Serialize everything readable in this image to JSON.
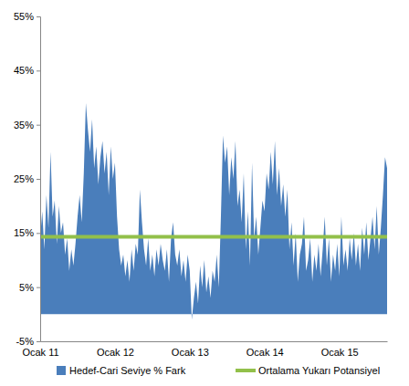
{
  "chart_data": {
    "type": "area",
    "categories": [
      "Ocak 11",
      null,
      null,
      null,
      null,
      null,
      null,
      null,
      null,
      null,
      null,
      null,
      null,
      null,
      null,
      null,
      null,
      null,
      null,
      null,
      null,
      null,
      null,
      null,
      null,
      null,
      null,
      null,
      null,
      null,
      null,
      null,
      null,
      null,
      null,
      null,
      "Ocak 12",
      null,
      null,
      null,
      null,
      null,
      null,
      null,
      null,
      null,
      null,
      null,
      null,
      null,
      null,
      null,
      null,
      null,
      null,
      null,
      null,
      null,
      null,
      null,
      null,
      null,
      null,
      null,
      null,
      null,
      null,
      null,
      null,
      null,
      null,
      null,
      "Ocak 13",
      null,
      null,
      null,
      null,
      null,
      null,
      null,
      null,
      null,
      null,
      null,
      null,
      null,
      null,
      null,
      null,
      null,
      null,
      null,
      null,
      null,
      null,
      null,
      null,
      null,
      null,
      null,
      null,
      null,
      null,
      null,
      null,
      null,
      null,
      null,
      "Ocak 14",
      null,
      null,
      null,
      null,
      null,
      null,
      null,
      null,
      null,
      null,
      null,
      null,
      null,
      null,
      null,
      null,
      null,
      null,
      null,
      null,
      null,
      null,
      null,
      null,
      null,
      null,
      null,
      null,
      null,
      null,
      null,
      null,
      null,
      null,
      null,
      "Ocak 15",
      null,
      null,
      null,
      null,
      null,
      null,
      null,
      null,
      null,
      null,
      null,
      null,
      null,
      null,
      null,
      null,
      null,
      null,
      null,
      null,
      null,
      null,
      null
    ],
    "series": [
      {
        "name": "Hedef-Cari Seviye % Fark",
        "type": "area",
        "color": "#4a7ebb",
        "values": [
          14,
          19,
          12,
          22,
          16,
          30,
          18,
          21,
          13,
          20,
          15,
          17,
          11,
          14,
          8,
          12,
          9,
          13,
          18,
          22,
          17,
          26,
          39,
          34,
          30,
          36,
          27,
          31,
          24,
          29,
          32,
          26,
          30,
          22,
          31,
          25,
          28,
          18,
          12,
          9,
          11,
          7,
          10,
          6,
          12,
          8,
          13,
          11,
          23,
          17,
          12,
          9,
          14,
          8,
          11,
          7,
          12,
          9,
          13,
          10,
          8,
          12,
          6,
          14,
          17,
          11,
          9,
          12,
          7,
          10,
          6,
          11,
          8,
          -1,
          3,
          6,
          2,
          9,
          5,
          10,
          4,
          7,
          3,
          8,
          6,
          11,
          5,
          18,
          33,
          28,
          31,
          22,
          29,
          25,
          32,
          20,
          23,
          17,
          26,
          12,
          19,
          9,
          28,
          14,
          18,
          11,
          16,
          21,
          19,
          26,
          23,
          30,
          24,
          32,
          22,
          27,
          20,
          24,
          18,
          23,
          12,
          17,
          9,
          15,
          6,
          11,
          13,
          18,
          8,
          10,
          14,
          6,
          11,
          8,
          13,
          7,
          12,
          18,
          9,
          14,
          6,
          11,
          8,
          13,
          7,
          18,
          9,
          12,
          8,
          14,
          10,
          15,
          9,
          13,
          8,
          16,
          11,
          17,
          10,
          14,
          18,
          12,
          20,
          11,
          16,
          22,
          29,
          27
        ]
      },
      {
        "name": "Ortalama Yukarı Potansiyel",
        "type": "line",
        "color": "#92c04a",
        "values": [
          14.3,
          14.3,
          14.3,
          14.3,
          14.3,
          14.3,
          14.3,
          14.3,
          14.3,
          14.3,
          14.3,
          14.3,
          14.3,
          14.3,
          14.3,
          14.3,
          14.3,
          14.3,
          14.3,
          14.3,
          14.3,
          14.3,
          14.3,
          14.3,
          14.3,
          14.3,
          14.3,
          14.3,
          14.3,
          14.3,
          14.3,
          14.3,
          14.3,
          14.3,
          14.3,
          14.3,
          14.3,
          14.3,
          14.3,
          14.3,
          14.3,
          14.3,
          14.3,
          14.3,
          14.3,
          14.3,
          14.3,
          14.3,
          14.3,
          14.3,
          14.3,
          14.3,
          14.3,
          14.3,
          14.3,
          14.3,
          14.3,
          14.3,
          14.3,
          14.3,
          14.3,
          14.3,
          14.3,
          14.3,
          14.3,
          14.3,
          14.3,
          14.3,
          14.3,
          14.3,
          14.3,
          14.3,
          14.3,
          14.3,
          14.3,
          14.3,
          14.3,
          14.3,
          14.3,
          14.3,
          14.3,
          14.3,
          14.3,
          14.3,
          14.3,
          14.3,
          14.3,
          14.3,
          14.3,
          14.3,
          14.3,
          14.3,
          14.3,
          14.3,
          14.3,
          14.3,
          14.3,
          14.3,
          14.3,
          14.3,
          14.3,
          14.3,
          14.3,
          14.3,
          14.3,
          14.3,
          14.3,
          14.3,
          14.3,
          14.3,
          14.3,
          14.3,
          14.3,
          14.3,
          14.3,
          14.3,
          14.3,
          14.3,
          14.3,
          14.3,
          14.3,
          14.3,
          14.3,
          14.3,
          14.3,
          14.3,
          14.3,
          14.3,
          14.3,
          14.3,
          14.3,
          14.3,
          14.3,
          14.3,
          14.3,
          14.3,
          14.3,
          14.3,
          14.3,
          14.3,
          14.3,
          14.3,
          14.3,
          14.3,
          14.3,
          14.3,
          14.3,
          14.3,
          14.3,
          14.3,
          14.3,
          14.3,
          14.3,
          14.3,
          14.3,
          14.3,
          14.3,
          14.3,
          14.3,
          14.3,
          14.3,
          14.3,
          14.3,
          14.3,
          14.3,
          14.3,
          14.3,
          14.3
        ]
      }
    ],
    "ylim": [
      -5,
      55
    ],
    "yticks": [
      {
        "value": -5,
        "label": "-5%"
      },
      {
        "value": 5,
        "label": "5%"
      },
      {
        "value": 15,
        "label": "15%"
      },
      {
        "value": 25,
        "label": "25%"
      },
      {
        "value": 35,
        "label": "35%"
      },
      {
        "value": 45,
        "label": "45%"
      },
      {
        "value": 55,
        "label": "55%"
      }
    ],
    "grid": false,
    "legend": "bottom"
  }
}
